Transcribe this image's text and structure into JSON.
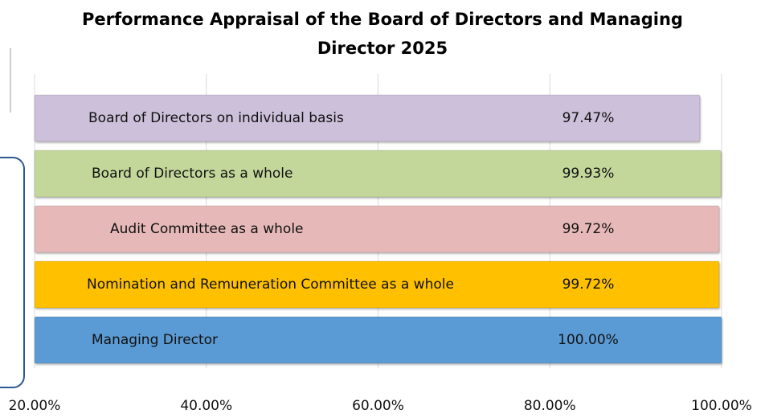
{
  "chart_data": {
    "type": "bar",
    "orientation": "horizontal",
    "title": "Performance Appraisal of the Board of Directors and Managing Director 2025",
    "categories": [
      "Board of Directors on individual basis",
      "Board of Directors as a whole",
      "Audit Committee as a whole",
      "Nomination and Remuneration Committee as a whole",
      "Managing Director"
    ],
    "values": [
      97.47,
      99.93,
      99.72,
      99.72,
      100.0
    ],
    "value_labels": [
      "97.47%",
      "99.93%",
      "99.72%",
      "99.72%",
      "100.00%"
    ],
    "colors": [
      "#ccc0da",
      "#c4d79b",
      "#e6b9b8",
      "#ffc000",
      "#5b9bd5"
    ],
    "xlim": [
      20,
      100
    ],
    "xticks": [
      {
        "value": 20,
        "label": "20.00%"
      },
      {
        "value": 40,
        "label": "40.00%"
      },
      {
        "value": 60,
        "label": "60.00%"
      },
      {
        "value": 80,
        "label": "80.00%"
      },
      {
        "value": 100,
        "label": "100.00%"
      }
    ],
    "grid": true
  }
}
